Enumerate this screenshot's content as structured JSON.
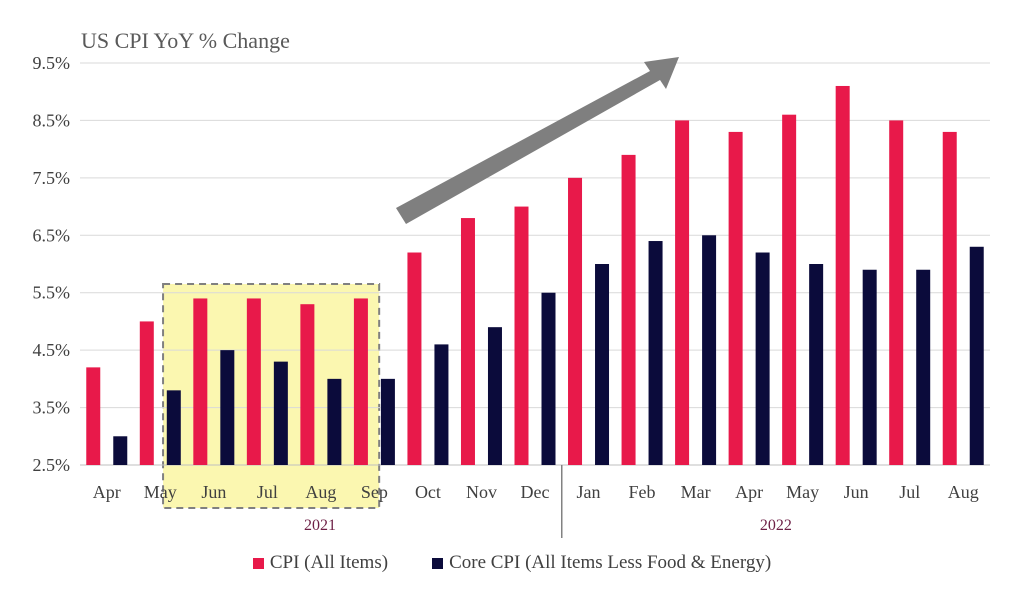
{
  "chart_data": {
    "type": "bar",
    "title": "US CPI YoY % Change",
    "categories": [
      "Apr",
      "May",
      "Jun",
      "Jul",
      "Aug",
      "Sep",
      "Oct",
      "Nov",
      "Dec",
      "Jan",
      "Feb",
      "Mar",
      "Apr",
      "May",
      "Jun",
      "Jul",
      "Aug"
    ],
    "year_groups": [
      {
        "label": "2021",
        "start": 0,
        "end": 8
      },
      {
        "label": "2022",
        "start": 9,
        "end": 16
      }
    ],
    "series": [
      {
        "name": "CPI (All Items)",
        "color": "#e8194a",
        "values": [
          4.2,
          5.0,
          5.4,
          5.4,
          5.3,
          5.4,
          6.2,
          6.8,
          7.0,
          7.5,
          7.9,
          8.5,
          8.3,
          8.6,
          9.1,
          8.5,
          8.3
        ]
      },
      {
        "name": "Core CPI (All Items Less Food & Energy)",
        "color": "#0b0b3b",
        "values": [
          3.0,
          3.8,
          4.5,
          4.3,
          4.0,
          4.0,
          4.6,
          4.9,
          5.5,
          6.0,
          6.4,
          6.5,
          6.2,
          6.0,
          5.9,
          5.9,
          6.3
        ]
      }
    ],
    "ylim": [
      2.5,
      9.5
    ],
    "yticks": [
      "2.5%",
      "3.5%",
      "4.5%",
      "5.5%",
      "6.5%",
      "7.5%",
      "8.5%",
      "9.5%"
    ],
    "highlight": {
      "start": 2,
      "end": 5,
      "fill": "#fbf7b0",
      "border": "#808080"
    },
    "trend_arrow": {
      "color": "#7f7f7f"
    },
    "grid": true,
    "legend_position": "bottom-center",
    "colors": {
      "gridline": "#d9d9d9",
      "axis": "#bfbfbf",
      "tick_text": "#404040",
      "year_text": "#6d1f45"
    }
  }
}
